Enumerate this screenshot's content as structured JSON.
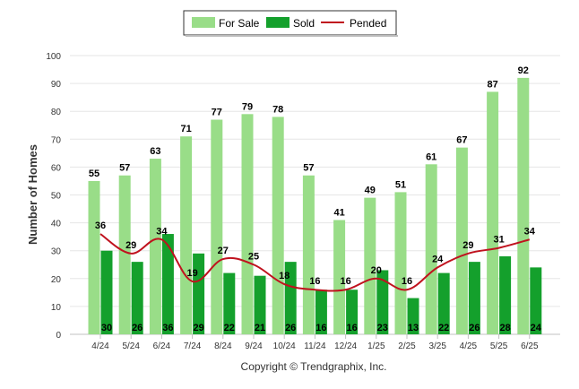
{
  "chart_data": {
    "type": "bar",
    "title": "",
    "xlabel": "",
    "ylabel": "Number of Homes",
    "ylim": [
      0,
      100
    ],
    "yticks": [
      0,
      10,
      20,
      30,
      40,
      50,
      60,
      70,
      80,
      90,
      100
    ],
    "grid": true,
    "legend_position": "top-center",
    "categories": [
      "4/24",
      "5/24",
      "6/24",
      "7/24",
      "8/24",
      "9/24",
      "10/24",
      "11/24",
      "12/24",
      "1/25",
      "2/25",
      "3/25",
      "4/25",
      "5/25",
      "6/25"
    ],
    "series": [
      {
        "name": "For Sale",
        "kind": "bar",
        "color": "#99dd88",
        "values": [
          55,
          57,
          63,
          71,
          77,
          79,
          78,
          57,
          41,
          49,
          51,
          61,
          67,
          87,
          92
        ]
      },
      {
        "name": "Sold",
        "kind": "bar",
        "color": "#14a02c",
        "values": [
          30,
          26,
          36,
          29,
          22,
          21,
          26,
          16,
          16,
          23,
          13,
          22,
          26,
          28,
          24
        ]
      },
      {
        "name": "Pended",
        "kind": "line",
        "color": "#c0121e",
        "values": [
          36,
          29,
          34,
          19,
          27,
          25,
          18,
          16,
          16,
          20,
          16,
          24,
          29,
          31,
          34
        ]
      }
    ],
    "footer": "Copyright © Trendgraphix, Inc."
  }
}
